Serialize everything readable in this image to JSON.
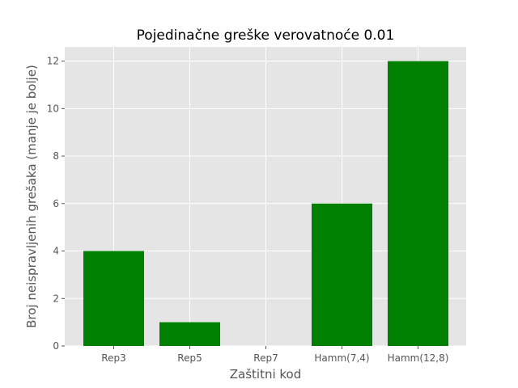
{
  "chart_data": {
    "type": "bar",
    "title": "Pojedinačne greške verovatnoće 0.01",
    "xlabel": "Zaštitni kod",
    "ylabel": "Broj neispravljenih grešaka (manje je bolje)",
    "categories": [
      "Rep3",
      "Rep5",
      "Rep7",
      "Hamm(7,4)",
      "Hamm(12,8)"
    ],
    "values": [
      4,
      1,
      0,
      6,
      12
    ],
    "ylim": [
      0,
      12.6
    ],
    "yticks": [
      "0",
      "2",
      "4",
      "6",
      "8",
      "10",
      "12"
    ],
    "bar_color": "#008000",
    "background_color": "#E5E5E5",
    "grid": true,
    "style": "ggplot"
  }
}
